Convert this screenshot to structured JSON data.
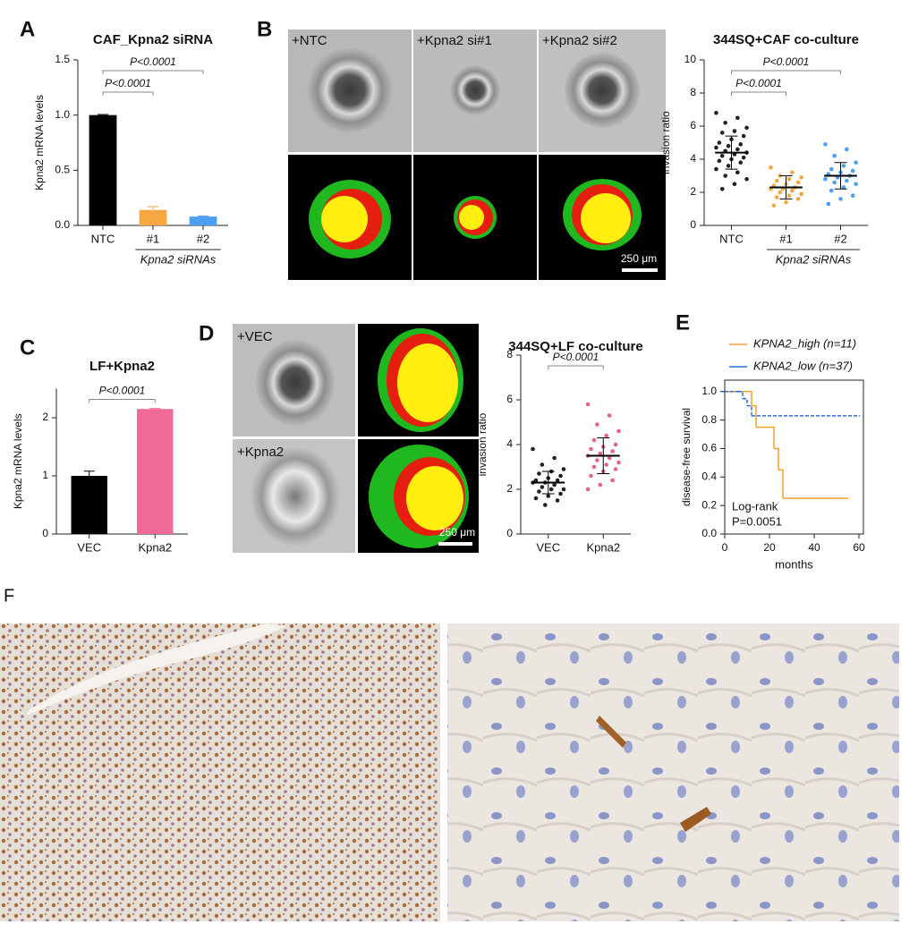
{
  "panel_labels": [
    "A",
    "B",
    "C",
    "D",
    "E",
    "F"
  ],
  "images_b": {
    "labels": [
      "+NTC",
      "+Kpna2 si#1",
      "+Kpna2 si#2"
    ],
    "scale_bar": "250 μm"
  },
  "images_d": {
    "labels": [
      "+VEC",
      "+Kpna2"
    ],
    "scale_bar": "250 μm"
  },
  "chart_data": [
    {
      "type": "bar",
      "title": "CAF_Kpna2 siRNA",
      "y_label": "Kpna2 mRNA levels",
      "categories": [
        "NTC",
        "#1",
        "#2"
      ],
      "group_label": "Kpna2 siRNAs",
      "values": [
        1.0,
        0.14,
        0.08
      ],
      "errors": [
        0.005,
        0.03,
        0.005
      ],
      "colors": [
        "#000000",
        "#f5a742",
        "#4e9ff2"
      ],
      "ylim": [
        0,
        1.5
      ],
      "yticks": [
        {
          "value": 0,
          "label": "0.0"
        },
        {
          "value": 0.5,
          "label": "0.5"
        },
        {
          "value": 1,
          "label": "1.0"
        },
        {
          "value": 1.5,
          "label": "1.5"
        }
      ],
      "annotations": [
        "P<0.0001",
        "P<0.0001"
      ]
    },
    {
      "type": "dotplot",
      "title": "344SQ+CAF co-culture",
      "y_label": "invasion ratio",
      "categories": [
        "NTC",
        "#1",
        "#2"
      ],
      "group_label": "Kpna2 siRNAs",
      "colors": [
        "#222222",
        "#f5a742",
        "#4e9ff2"
      ],
      "points": [
        [
          6.8,
          6.5,
          6.2,
          5.9,
          5.7,
          5.6,
          5.4,
          5.2,
          5.0,
          4.9,
          4.8,
          4.7,
          4.6,
          4.5,
          4.4,
          4.3,
          4.2,
          4.1,
          4.0,
          3.9,
          3.8,
          3.6,
          3.4,
          3.2,
          3.0,
          2.8,
          2.5,
          2.2
        ],
        [
          3.5,
          3.2,
          3.0,
          2.9,
          2.8,
          2.7,
          2.6,
          2.5,
          2.4,
          2.3,
          2.2,
          2.2,
          2.1,
          2.0,
          1.9,
          1.8,
          1.7,
          1.6,
          1.4,
          1.2
        ],
        [
          4.9,
          4.6,
          4.2,
          3.8,
          3.6,
          3.4,
          3.3,
          3.2,
          3.1,
          3.0,
          2.9,
          2.8,
          2.7,
          2.6,
          2.5,
          2.3,
          2.1,
          1.8,
          1.6,
          1.3
        ]
      ],
      "means": [
        4.4,
        2.3,
        3.0
      ],
      "sds": [
        1.0,
        0.7,
        0.8
      ],
      "ylim": [
        0,
        10
      ],
      "yticks": [
        0,
        2,
        4,
        6,
        8,
        10
      ],
      "annotations": [
        "P<0.0001",
        "P<0.0001"
      ]
    },
    {
      "type": "bar",
      "title": "LF+Kpna2",
      "y_label": "Kpna2 mRNA levels",
      "categories": [
        "VEC",
        "Kpna2"
      ],
      "values": [
        1.0,
        2.15
      ],
      "errors": [
        0.08,
        0.01
      ],
      "colors": [
        "#000000",
        "#f06a96"
      ],
      "ylim": [
        0,
        2.5
      ],
      "yticks": [
        0,
        1,
        2
      ],
      "annotations": [
        "P<0.0001"
      ]
    },
    {
      "type": "dotplot",
      "title": "344SQ+LF co-culture",
      "y_label": "invasion ratio",
      "categories": [
        "VEC",
        "Kpna2"
      ],
      "colors": [
        "#222222",
        "#e8608e"
      ],
      "points": [
        [
          3.8,
          3.4,
          3.1,
          2.9,
          2.8,
          2.7,
          2.6,
          2.5,
          2.4,
          2.4,
          2.3,
          2.3,
          2.2,
          2.1,
          2.0,
          2.0,
          1.9,
          1.8,
          1.7,
          1.6,
          1.5,
          1.3
        ],
        [
          5.8,
          5.3,
          4.9,
          4.6,
          4.4,
          4.2,
          4.0,
          3.9,
          3.8,
          3.7,
          3.6,
          3.5,
          3.4,
          3.3,
          3.2,
          3.1,
          3.0,
          2.9,
          2.8,
          2.6,
          2.4,
          2.2,
          2.0
        ]
      ],
      "means": [
        2.3,
        3.5
      ],
      "sds": [
        0.5,
        0.8
      ],
      "ylim": [
        0,
        8
      ],
      "yticks": [
        0,
        2,
        4,
        6,
        8
      ],
      "annotations": [
        "P<0.0001"
      ]
    },
    {
      "type": "line",
      "step": true,
      "x_label": "months",
      "y_label": "disease-free survival",
      "series": [
        {
          "name": "KPNA2_high (n=11)",
          "color": "#f0a030",
          "x": [
            0,
            10,
            12,
            14,
            20,
            22,
            24,
            26,
            55
          ],
          "y": [
            1.0,
            1.0,
            0.9,
            0.75,
            0.75,
            0.6,
            0.45,
            0.25,
            0.25
          ]
        },
        {
          "name": "KPNA2_low (n=37)",
          "color": "#2c6fd6",
          "x": [
            0,
            6,
            8,
            10,
            12,
            60
          ],
          "y": [
            1.0,
            1.0,
            0.95,
            0.9,
            0.83,
            0.83
          ]
        }
      ],
      "xlim": [
        0,
        62
      ],
      "xticks": [
        0,
        20,
        40,
        60
      ],
      "ylim": [
        0,
        1.08
      ],
      "yticks": [
        {
          "value": 0,
          "label": "0.0"
        },
        {
          "value": 0.2,
          "label": "0.2"
        },
        {
          "value": 0.4,
          "label": "0.4"
        },
        {
          "value": 0.6,
          "label": "0.6"
        },
        {
          "value": 0.8,
          "label": "0.8"
        },
        {
          "value": 1,
          "label": "1.0"
        }
      ],
      "annotations": [
        "Log-rank",
        "P=0.0051"
      ]
    }
  ]
}
